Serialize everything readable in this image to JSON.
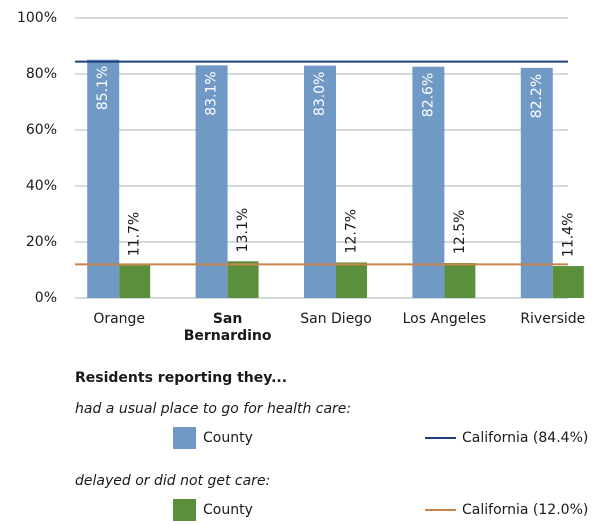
{
  "chart_data": {
    "type": "bar",
    "categories": [
      "Orange",
      "San Bernardino",
      "San Diego",
      "Los Angeles",
      "Riverside"
    ],
    "bold_category_index": 1,
    "ylim": [
      0,
      100
    ],
    "yticks": [
      {
        "value": 0,
        "label": "0%"
      },
      {
        "value": 20,
        "label": "20%"
      },
      {
        "value": 40,
        "label": "40%"
      },
      {
        "value": 60,
        "label": "60%"
      },
      {
        "value": 80,
        "label": "80%"
      },
      {
        "value": 100,
        "label": "100%"
      }
    ],
    "grid": true,
    "legend_title": "Residents reporting they...",
    "series": [
      {
        "name": "County",
        "group": "had a usual place to go for health care:",
        "color": "#7099c6",
        "values": [
          85.1,
          83.1,
          83.0,
          82.6,
          82.2
        ],
        "value_labels": [
          "85.1%",
          "83.1%",
          "83.0%",
          "82.6%",
          "82.2%"
        ]
      },
      {
        "name": "County",
        "group": "delayed or did not get care:",
        "color": "#5a8f3c",
        "values": [
          11.7,
          13.1,
          12.7,
          12.5,
          11.4
        ],
        "value_labels": [
          "11.7%",
          "13.1%",
          "12.7%",
          "12.5%",
          "11.4%"
        ]
      }
    ],
    "reference_lines": [
      {
        "name": "California (84.4%)",
        "value": 84.4,
        "color": "#1d3f7c"
      },
      {
        "name": "California (12.0%)",
        "value": 12.0,
        "color": "#c8844a"
      }
    ]
  }
}
